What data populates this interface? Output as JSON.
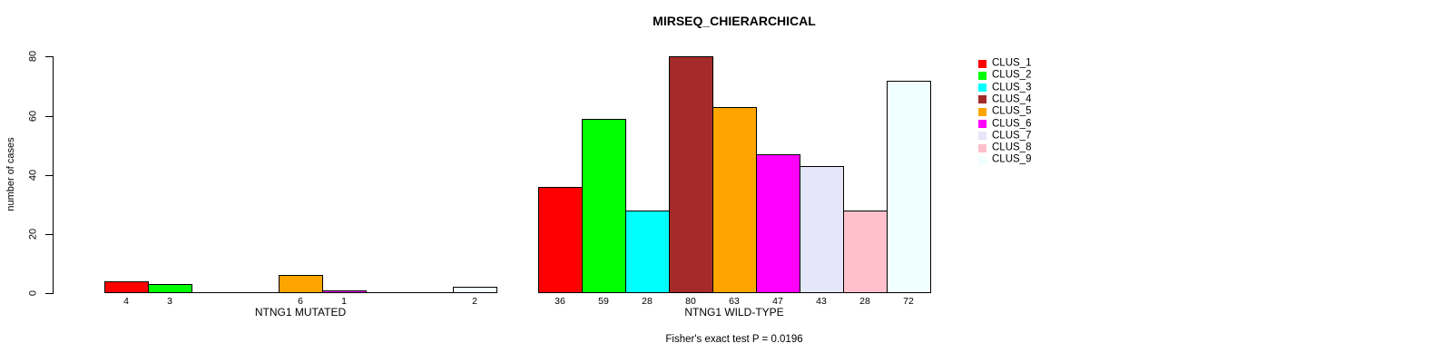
{
  "chart_data": {
    "type": "bar",
    "title": "MIRSEQ_CHIERARCHICAL",
    "ylabel": "number of cases",
    "subtitle": "Fisher's exact test P = 0.0196",
    "ylim": [
      0,
      80
    ],
    "yticks": [
      0,
      20,
      40,
      60,
      80
    ],
    "grid": false,
    "legend_position": "right",
    "categories": [
      "CLUS_1",
      "CLUS_2",
      "CLUS_3",
      "CLUS_4",
      "CLUS_5",
      "CLUS_6",
      "CLUS_7",
      "CLUS_8",
      "CLUS_9"
    ],
    "colors": [
      "#ff0000",
      "#00ff00",
      "#00ffff",
      "#a52a2a",
      "#ffa500",
      "#ff00ff",
      "#e6e6fa",
      "#ffc0cb",
      "#f0ffff"
    ],
    "bar_border_color": "#000000",
    "groups": [
      {
        "label": "NTNG1 MUTATED",
        "values": [
          4,
          3,
          0,
          0,
          6,
          1,
          0,
          0,
          2
        ]
      },
      {
        "label": "NTNG1 WILD-TYPE",
        "values": [
          36,
          59,
          28,
          80,
          63,
          47,
          43,
          28,
          72
        ]
      }
    ]
  }
}
